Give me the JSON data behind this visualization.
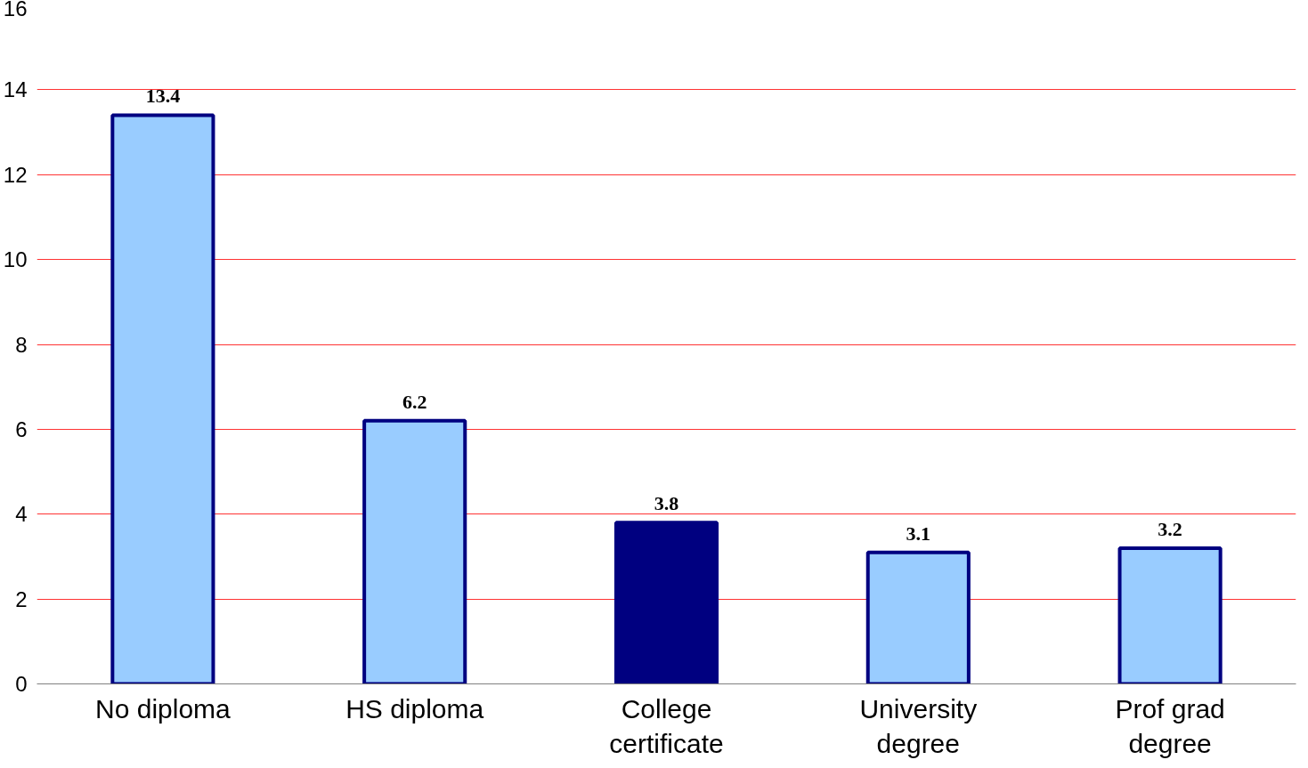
{
  "chart_data": {
    "type": "bar",
    "categories": [
      "No diploma",
      "HS diploma",
      "College certificate",
      "University degree",
      "Prof grad degree"
    ],
    "values": [
      13.4,
      6.2,
      3.8,
      3.1,
      3.2
    ],
    "colors": [
      "#99ccff",
      "#99ccff",
      "#000080",
      "#99ccff",
      "#99ccff"
    ],
    "ylim": [
      0,
      16
    ],
    "yticks": [
      0,
      2,
      4,
      6,
      8,
      10,
      12,
      14,
      16
    ],
    "grid": "y",
    "data_labels": true
  }
}
